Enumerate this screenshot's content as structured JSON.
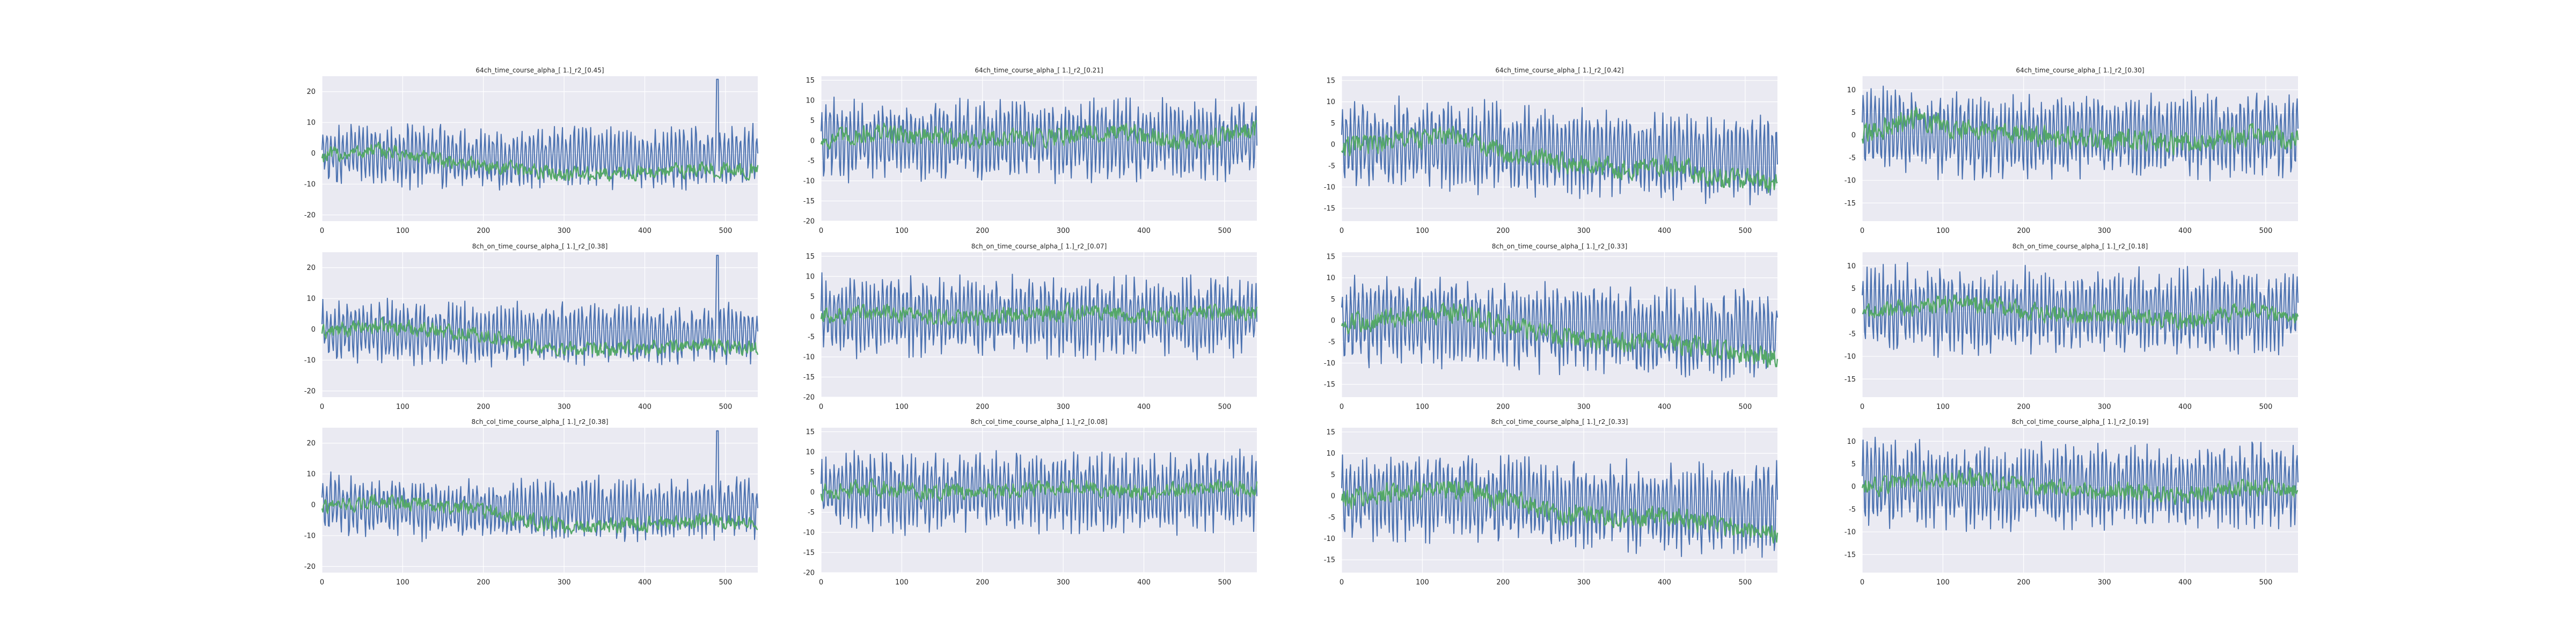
{
  "figure": {
    "background": "#ffffff",
    "axes_facecolor": "#eaeaf2",
    "grid_color": "#ffffff"
  },
  "colors": {
    "series_blue": "#4c72b0",
    "series_green": "#55a868"
  },
  "chart_data": [
    {
      "type": "line",
      "title": "64ch_time_course_alpha_[ 1.]_r2_[0.45]",
      "xlim": [
        0,
        540
      ],
      "ylim": [
        -22,
        25
      ],
      "xticks": [
        0,
        100,
        200,
        300,
        400,
        500
      ],
      "yticks": [
        -20,
        -10,
        0,
        10,
        20
      ],
      "series": [
        {
          "color": "#4c72b0",
          "amplitude": 9.5,
          "frequency_hz": 0.2,
          "trend": [
            0,
            -1,
            -2,
            -1,
            -2,
            -1
          ],
          "spikes": [
            [
              490,
              24
            ]
          ]
        },
        {
          "color": "#55a868",
          "amplitude": 3,
          "trend": [
            -1,
            1,
            -2,
            -4,
            -6,
            -7,
            -6,
            -5,
            -6
          ]
        }
      ]
    },
    {
      "type": "line",
      "title": "64ch_time_course_alpha_[ 1.]_r2_[0.21]",
      "xlim": [
        0,
        540
      ],
      "ylim": [
        -20,
        16
      ],
      "xticks": [
        0,
        100,
        200,
        300,
        400,
        500
      ],
      "yticks": [
        -20,
        -15,
        -10,
        -5,
        0,
        5,
        10,
        15
      ],
      "series": [
        {
          "color": "#4c72b0",
          "amplitude": 9.5,
          "trend": [
            0,
            0,
            0,
            0,
            0,
            0
          ]
        },
        {
          "color": "#55a868",
          "amplitude": 3,
          "trend": [
            0,
            2,
            1,
            0,
            1,
            2,
            1,
            0,
            3
          ]
        }
      ]
    },
    {
      "type": "line",
      "title": "64ch_time_course_alpha_[ 1.]_r2_[0.42]",
      "xlim": [
        0,
        540
      ],
      "ylim": [
        -18,
        16
      ],
      "xticks": [
        0,
        100,
        200,
        300,
        400,
        500
      ],
      "yticks": [
        -15,
        -10,
        -5,
        0,
        5,
        10,
        15
      ],
      "series": [
        {
          "color": "#4c72b0",
          "amplitude": 10,
          "trend": [
            0,
            0,
            -1,
            -2,
            -3,
            -3
          ]
        },
        {
          "color": "#55a868",
          "amplitude": 3,
          "trend": [
            -1,
            1,
            2,
            -2,
            -4,
            -6,
            -5,
            -8,
            -9
          ]
        }
      ]
    },
    {
      "type": "line",
      "title": "64ch_time_course_alpha_[ 1.]_r2_[0.30]",
      "xlim": [
        0,
        540
      ],
      "ylim": [
        -19,
        13
      ],
      "xticks": [
        0,
        100,
        200,
        300,
        400,
        500
      ],
      "yticks": [
        -15,
        -10,
        -5,
        0,
        5,
        10
      ],
      "series": [
        {
          "color": "#4c72b0",
          "amplitude": 9,
          "trend": [
            1,
            0,
            0,
            0,
            0,
            0
          ]
        },
        {
          "color": "#55a868",
          "amplitude": 3,
          "trend": [
            0,
            4,
            1,
            0,
            -1,
            -1,
            -2,
            0,
            -1
          ]
        }
      ]
    },
    {
      "type": "line",
      "title": "8ch_on_time_course_alpha_[ 1.]_r2_[0.38]",
      "xlim": [
        0,
        540
      ],
      "ylim": [
        -22,
        25
      ],
      "xticks": [
        0,
        100,
        200,
        300,
        400,
        500
      ],
      "yticks": [
        -20,
        -10,
        0,
        10,
        20
      ],
      "series": [
        {
          "color": "#4c72b0",
          "amplitude": 9.5,
          "trend": [
            0,
            -1,
            -2,
            -1,
            -2,
            -1
          ],
          "spikes": [
            [
              490,
              24
            ]
          ]
        },
        {
          "color": "#55a868",
          "amplitude": 3,
          "trend": [
            -1,
            1,
            0,
            -2,
            -6,
            -7,
            -6,
            -5,
            -6
          ]
        }
      ]
    },
    {
      "type": "line",
      "title": "8ch_on_time_course_alpha_[ 1.]_r2_[0.07]",
      "xlim": [
        0,
        540
      ],
      "ylim": [
        -20,
        16
      ],
      "xticks": [
        0,
        100,
        200,
        300,
        400,
        500
      ],
      "yticks": [
        -20,
        -15,
        -10,
        -5,
        0,
        5,
        10,
        15
      ],
      "series": [
        {
          "color": "#4c72b0",
          "amplitude": 9.5,
          "trend": [
            0,
            0,
            0,
            0,
            0,
            0
          ]
        },
        {
          "color": "#55a868",
          "amplitude": 2.5,
          "trend": [
            0,
            1,
            0,
            0,
            1,
            1,
            0,
            1,
            1
          ]
        }
      ]
    },
    {
      "type": "line",
      "title": "8ch_on_time_course_alpha_[ 1.]_r2_[0.33]",
      "xlim": [
        0,
        540
      ],
      "ylim": [
        -18,
        16
      ],
      "xticks": [
        0,
        100,
        200,
        300,
        400,
        500
      ],
      "yticks": [
        -15,
        -10,
        -5,
        0,
        5,
        10,
        15
      ],
      "series": [
        {
          "color": "#4c72b0",
          "amplitude": 10,
          "trend": [
            0,
            0,
            -1,
            -2,
            -3,
            -3
          ]
        },
        {
          "color": "#55a868",
          "amplitude": 3,
          "trend": [
            -1,
            1,
            2,
            -1,
            -4,
            -5,
            -5,
            -7,
            -9
          ]
        }
      ]
    },
    {
      "type": "line",
      "title": "8ch_on_time_course_alpha_[ 1.]_r2_[0.18]",
      "xlim": [
        0,
        540
      ],
      "ylim": [
        -19,
        13
      ],
      "xticks": [
        0,
        100,
        200,
        300,
        400,
        500
      ],
      "yticks": [
        -15,
        -10,
        -5,
        0,
        5,
        10
      ],
      "series": [
        {
          "color": "#4c72b0",
          "amplitude": 9,
          "trend": [
            1,
            0,
            0,
            0,
            0,
            0
          ]
        },
        {
          "color": "#55a868",
          "amplitude": 2.5,
          "trend": [
            0,
            1,
            2,
            0,
            -1,
            -1,
            -2,
            0,
            -1
          ]
        }
      ]
    },
    {
      "type": "line",
      "title": "8ch_col_time_course_alpha_[ 1.]_r2_[0.38]",
      "xlim": [
        0,
        540
      ],
      "ylim": [
        -22,
        25
      ],
      "xticks": [
        0,
        100,
        200,
        300,
        400,
        500
      ],
      "yticks": [
        -20,
        -10,
        0,
        10,
        20
      ],
      "series": [
        {
          "color": "#4c72b0",
          "amplitude": 9.5,
          "trend": [
            0,
            -1,
            -2,
            -1,
            -2,
            -1
          ],
          "spikes": [
            [
              490,
              24
            ]
          ]
        },
        {
          "color": "#55a868",
          "amplitude": 3,
          "trend": [
            -1,
            1,
            0,
            -2,
            -6,
            -7,
            -6,
            -5,
            -6
          ]
        }
      ]
    },
    {
      "type": "line",
      "title": "8ch_col_time_course_alpha_[ 1.]_r2_[0.08]",
      "xlim": [
        0,
        540
      ],
      "ylim": [
        -20,
        16
      ],
      "xticks": [
        0,
        100,
        200,
        300,
        400,
        500
      ],
      "yticks": [
        -20,
        -15,
        -10,
        -5,
        0,
        5,
        10,
        15
      ],
      "series": [
        {
          "color": "#4c72b0",
          "amplitude": 9.5,
          "trend": [
            0,
            0,
            0,
            0,
            0,
            0
          ]
        },
        {
          "color": "#55a868",
          "amplitude": 2.5,
          "trend": [
            0,
            1,
            0,
            0,
            1,
            1,
            0,
            1,
            1
          ]
        }
      ]
    },
    {
      "type": "line",
      "title": "8ch_col_time_course_alpha_[ 1.]_r2_[0.33]",
      "xlim": [
        0,
        540
      ],
      "ylim": [
        -18,
        16
      ],
      "xticks": [
        0,
        100,
        200,
        300,
        400,
        500
      ],
      "yticks": [
        -15,
        -10,
        -5,
        0,
        5,
        10,
        15
      ],
      "series": [
        {
          "color": "#4c72b0",
          "amplitude": 10,
          "trend": [
            0,
            0,
            -1,
            -2,
            -3,
            -3
          ]
        },
        {
          "color": "#55a868",
          "amplitude": 3,
          "trend": [
            -1,
            1,
            2,
            -1,
            -4,
            -5,
            -5,
            -7,
            -9
          ]
        }
      ]
    },
    {
      "type": "line",
      "title": "8ch_col_time_course_alpha_[ 1.]_r2_[0.19]",
      "xlim": [
        0,
        540
      ],
      "ylim": [
        -19,
        13
      ],
      "xticks": [
        0,
        100,
        200,
        300,
        400,
        500
      ],
      "yticks": [
        -15,
        -10,
        -5,
        0,
        5,
        10
      ],
      "series": [
        {
          "color": "#4c72b0",
          "amplitude": 9,
          "trend": [
            1,
            0,
            0,
            0,
            0,
            0
          ]
        },
        {
          "color": "#55a868",
          "amplitude": 2.5,
          "trend": [
            0,
            1,
            2,
            0,
            -1,
            -1,
            -2,
            0,
            -1
          ]
        }
      ]
    }
  ]
}
